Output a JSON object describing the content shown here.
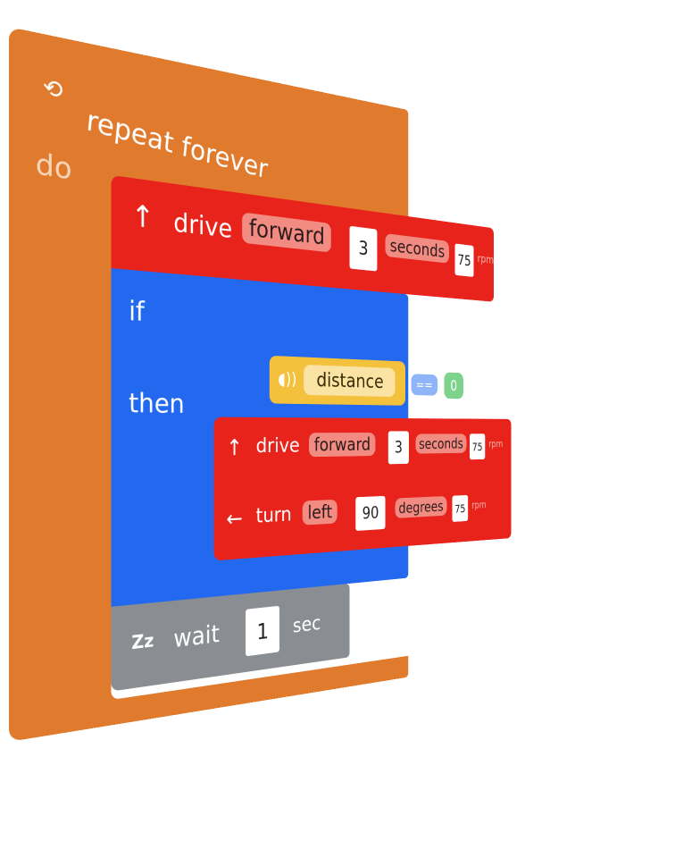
{
  "repeat": {
    "label": "repeat forever",
    "do_label": "do",
    "icon": "repeat-infinity-icon",
    "color": "#e07b2e"
  },
  "drive1": {
    "label": "drive",
    "direction": "forward",
    "amount": "3",
    "unit": "seconds",
    "speed": "75",
    "speed_unit": "rpm",
    "icon": "up-arrow-icon",
    "color": "#e8231b"
  },
  "if_block": {
    "if_label": "if",
    "then_label": "then",
    "color": "#2369f0"
  },
  "condition": {
    "sensor": "distance",
    "operator": "==",
    "value": "0",
    "icon": "distance-sensor-icon",
    "color": "#f4c13d"
  },
  "drive2": {
    "label": "drive",
    "direction": "forward",
    "amount": "3",
    "unit": "seconds",
    "speed": "75",
    "speed_unit": "rpm",
    "icon": "up-arrow-icon"
  },
  "turn": {
    "label": "turn",
    "direction": "left",
    "amount": "90",
    "unit": "degrees",
    "speed": "75",
    "speed_unit": "rpm",
    "icon": "left-arrow-icon"
  },
  "wait": {
    "label": "wait",
    "amount": "1",
    "unit": "sec",
    "icon": "sleep-zz-icon",
    "color": "#8a8d91"
  }
}
